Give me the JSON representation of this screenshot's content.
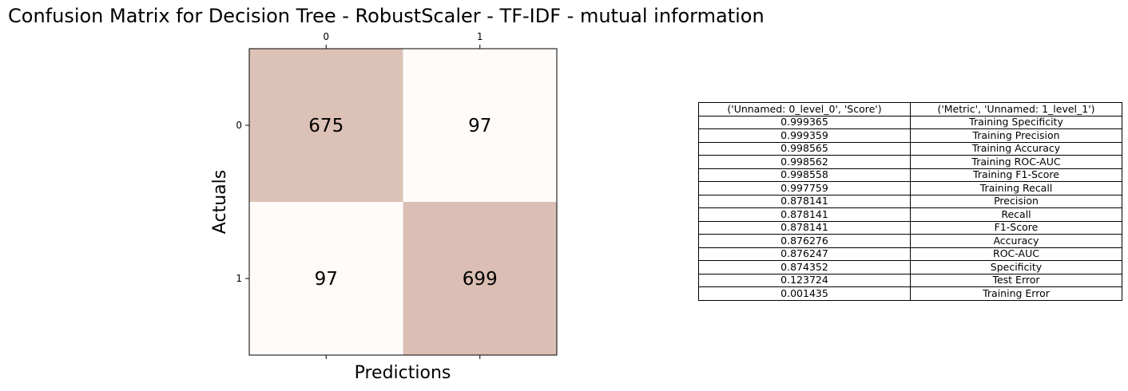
{
  "title": "Confusion Matrix for Decision Tree - RobustScaler - TF-IDF - mutual information",
  "chart_data": {
    "type": "heatmap",
    "title": "Confusion Matrix for Decision Tree - RobustScaler - TF-IDF - mutual information",
    "xlabel": "Predictions",
    "ylabel": "Actuals",
    "x_categories": [
      "0",
      "1"
    ],
    "y_categories": [
      "0",
      "1"
    ],
    "values": [
      [
        675,
        97
      ],
      [
        97,
        699
      ]
    ],
    "colors": {
      "high": "#dbbfb4",
      "low": "#fffbf9"
    },
    "x_tick_position": "top-and-bottom",
    "grid": false
  },
  "table": {
    "headers": [
      "('Unnamed: 0_level_0', 'Score')",
      "('Metric', 'Unnamed: 1_level_1')"
    ],
    "rows": [
      [
        "0.999365",
        "Training Specificity"
      ],
      [
        "0.999359",
        "Training Precision"
      ],
      [
        "0.998565",
        "Training Accuracy"
      ],
      [
        "0.998562",
        "Training ROC-AUC"
      ],
      [
        "0.998558",
        "Training F1-Score"
      ],
      [
        "0.997759",
        "Training Recall"
      ],
      [
        "0.878141",
        "Precision"
      ],
      [
        "0.878141",
        "Recall"
      ],
      [
        "0.878141",
        "F1-Score"
      ],
      [
        "0.876276",
        "Accuracy"
      ],
      [
        "0.876247",
        "ROC-AUC"
      ],
      [
        "0.874352",
        "Specificity"
      ],
      [
        "0.123724",
        "Test Error"
      ],
      [
        "0.001435",
        "Training Error"
      ]
    ]
  }
}
